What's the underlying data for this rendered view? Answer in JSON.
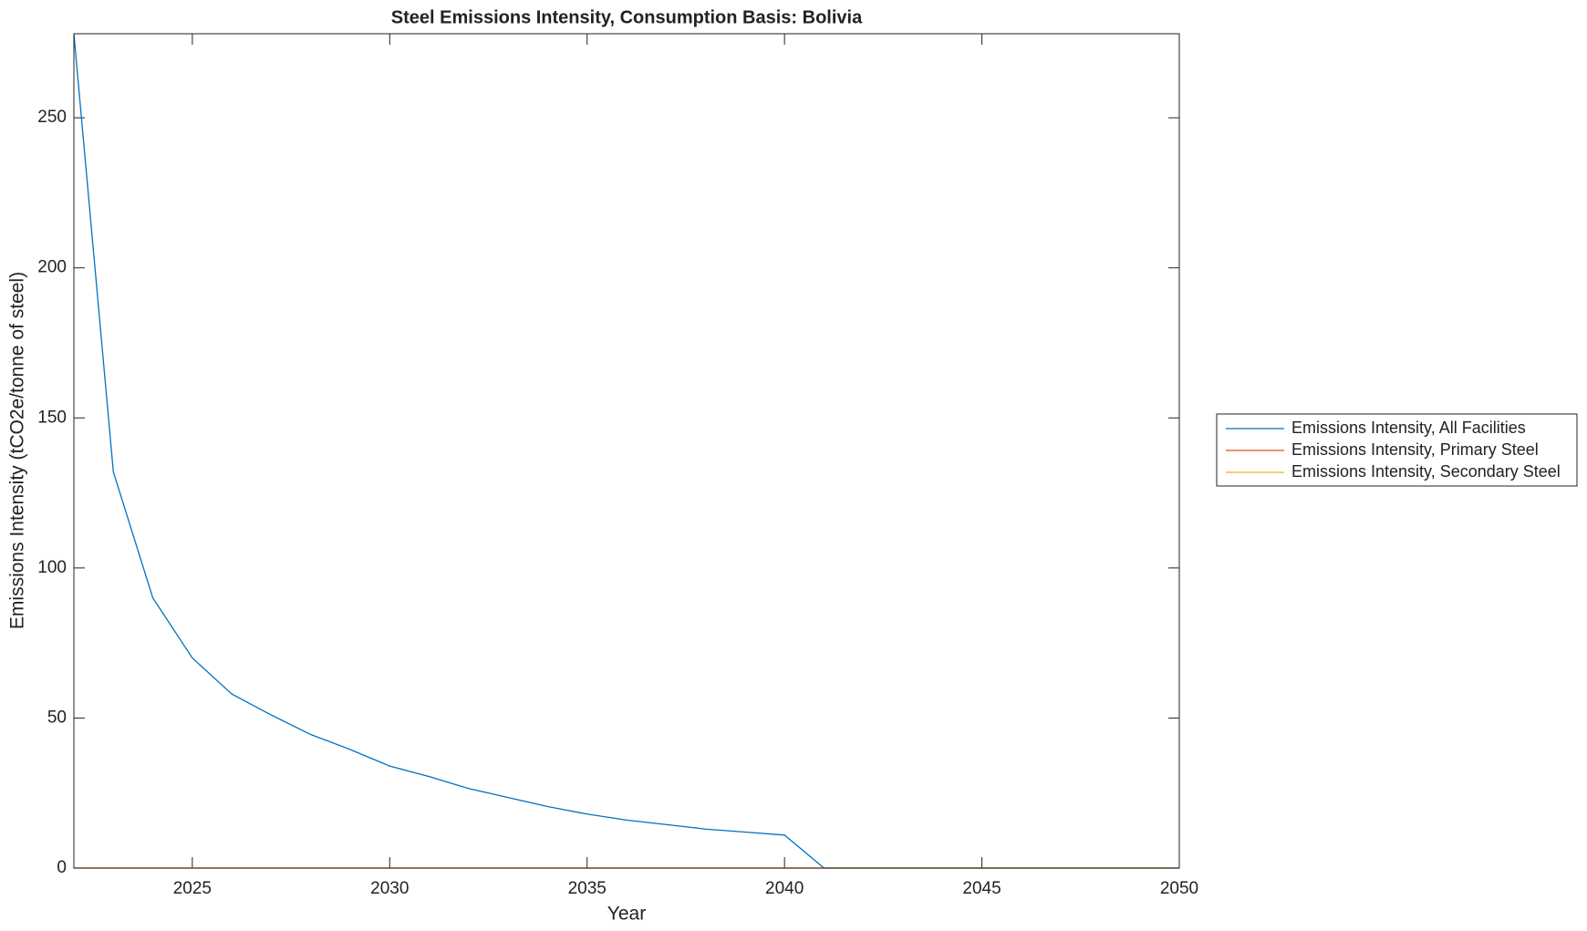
{
  "chart_data": {
    "type": "line",
    "title": "Steel Emissions Intensity, Consumption Basis: Bolivia",
    "x_label": "Year",
    "y_label": "Emissions Intensity (tCO2e/tonne of steel)",
    "x": [
      2022,
      2023,
      2024,
      2025,
      2026,
      2027,
      2028,
      2029,
      2030,
      2031,
      2032,
      2033,
      2034,
      2035,
      2036,
      2037,
      2038,
      2039,
      2040,
      2041,
      2042,
      2043,
      2044,
      2045,
      2046,
      2047,
      2048,
      2049,
      2050
    ],
    "series": [
      {
        "name": "Emissions Intensity, All Facilities",
        "color": "#0072bd",
        "values": [
          278,
          132,
          90,
          70,
          58,
          51,
          44.5,
          39.5,
          34,
          30.5,
          26.5,
          23.5,
          20.5,
          18,
          16,
          14.5,
          13,
          12,
          11,
          0,
          0,
          0,
          0,
          0,
          0,
          0,
          0,
          0,
          0
        ]
      },
      {
        "name": "Emissions Intensity, Primary Steel",
        "color": "#d95319",
        "values": [
          0,
          0,
          0,
          0,
          0,
          0,
          0,
          0,
          0,
          0,
          0,
          0,
          0,
          0,
          0,
          0,
          0,
          0,
          0,
          0,
          0,
          0,
          0,
          0,
          0,
          0,
          0,
          0,
          0
        ]
      },
      {
        "name": "Emissions Intensity, Secondary Steel",
        "color": "#edb120",
        "values": [
          0,
          0,
          0,
          0,
          0,
          0,
          0,
          0,
          0,
          0,
          0,
          0,
          0,
          0,
          0,
          0,
          0,
          0,
          0,
          0,
          0,
          0,
          0,
          0,
          0,
          0,
          0,
          0,
          0
        ]
      }
    ],
    "xlim": [
      2022,
      2050
    ],
    "xticks": [
      2025,
      2030,
      2035,
      2040,
      2045,
      2050
    ],
    "ylim": [
      0,
      278
    ],
    "yticks": [
      0,
      50,
      100,
      150,
      200,
      250
    ],
    "grid": false,
    "legend": "outside-right"
  }
}
